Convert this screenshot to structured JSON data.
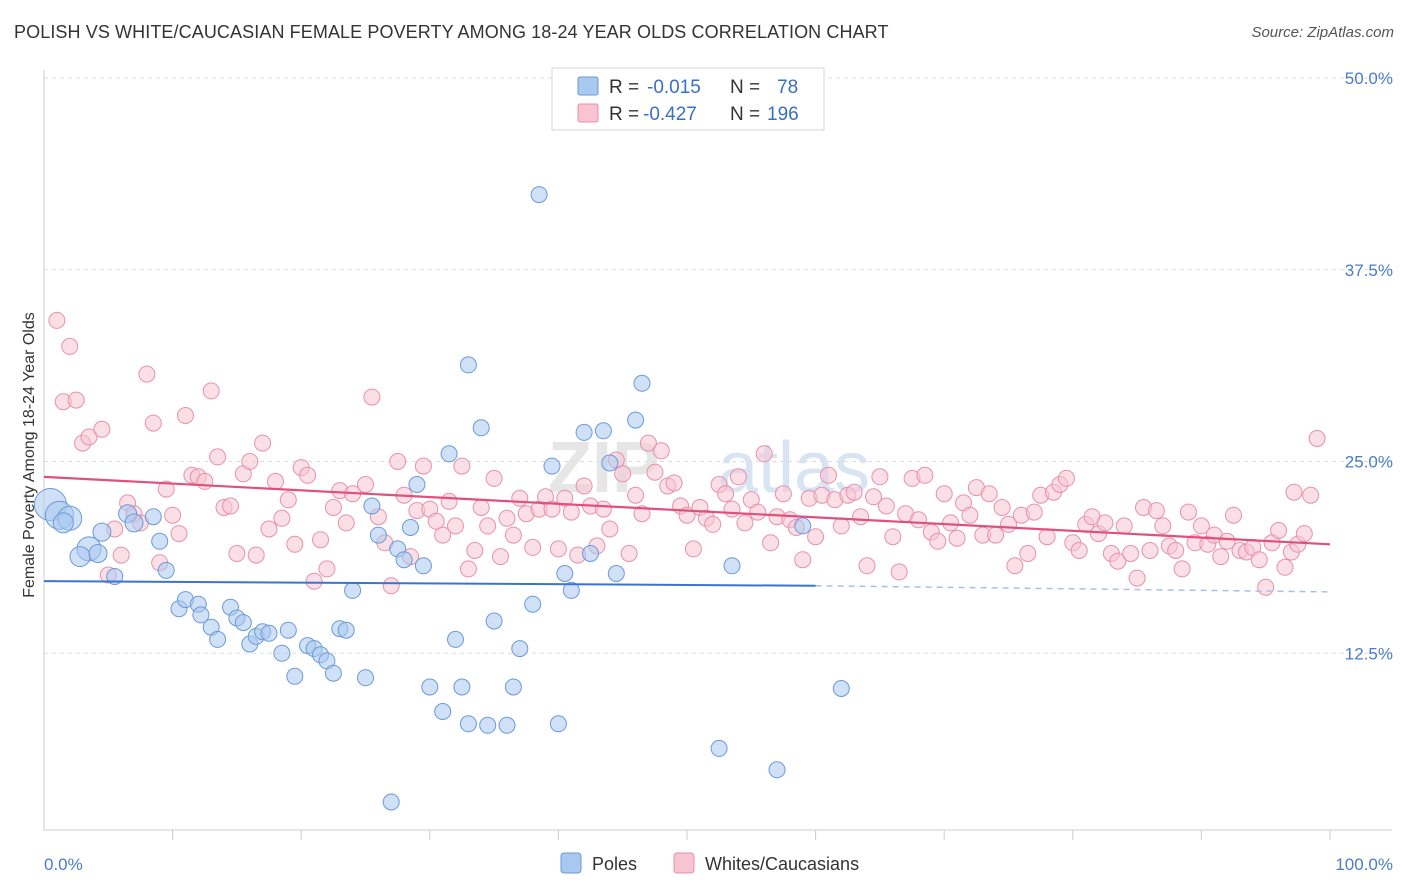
{
  "title": "POLISH VS WHITE/CAUCASIAN FEMALE POVERTY AMONG 18-24 YEAR OLDS CORRELATION CHART",
  "source": "Source: ZipAtlas.com",
  "watermark": {
    "zip": "ZIP",
    "atlas": "atlas"
  },
  "legend": {
    "r_label": "R =",
    "n_label": "N =",
    "rows": [
      {
        "name": "Poles",
        "r": "-0.015",
        "n": "78",
        "color": "#a9c8f0",
        "stroke": "#6a9ad8"
      },
      {
        "name": "Whites/Caucasians",
        "r": "-0.427",
        "n": "196",
        "color": "#f8c4d4",
        "stroke": "#e890ac"
      }
    ]
  },
  "chart_data": {
    "type": "scatter",
    "title": "POLISH VS WHITE/CAUCASIAN FEMALE POVERTY AMONG 18-24 YEAR OLDS CORRELATION CHART",
    "xlabel": "",
    "ylabel": "Female Poverty Among 18-24 Year Olds",
    "xlim": [
      0,
      100
    ],
    "ylim": [
      0,
      50
    ],
    "x_tick_labels": [
      "0.0%",
      "100.0%"
    ],
    "y_ticks": [
      12.5,
      25.0,
      37.5,
      50.0
    ],
    "y_tick_labels": [
      "12.5%",
      "25.0%",
      "37.5%",
      "50.0%"
    ],
    "series": [
      {
        "name": "Poles",
        "color": "#a9c8f0",
        "stroke": "#6a9ad8",
        "trend": {
          "x0": 0,
          "y0": 17.2,
          "x1": 60,
          "y1": 16.9,
          "dashed_to_x": 100,
          "dashed_to_y": 16.5,
          "color": "#3a74d0"
        },
        "points": [
          [
            0.5,
            22.2,
            16
          ],
          [
            1.2,
            21.5,
            14
          ],
          [
            2.0,
            21.3,
            12
          ],
          [
            1.5,
            21.0,
            10
          ],
          [
            3.5,
            19.3,
            12
          ],
          [
            2.8,
            18.8,
            10
          ],
          [
            4.2,
            19.0,
            9
          ],
          [
            4.5,
            20.4,
            9
          ],
          [
            5.5,
            17.5,
            8
          ],
          [
            6.5,
            21.6,
            9
          ],
          [
            7.0,
            21.0,
            9
          ],
          [
            9.0,
            19.8,
            8
          ],
          [
            8.5,
            21.4,
            8
          ],
          [
            9.5,
            17.9,
            8
          ],
          [
            10.5,
            15.4,
            8
          ],
          [
            11.0,
            16.0,
            8
          ],
          [
            12.0,
            15.7,
            8
          ],
          [
            12.2,
            15.0,
            8
          ],
          [
            13.0,
            14.2,
            8
          ],
          [
            13.5,
            13.4,
            8
          ],
          [
            14.5,
            15.5,
            8
          ],
          [
            15.0,
            14.8,
            8
          ],
          [
            15.5,
            14.5,
            8
          ],
          [
            16.0,
            13.1,
            8
          ],
          [
            16.5,
            13.6,
            8
          ],
          [
            17.0,
            13.9,
            8
          ],
          [
            17.5,
            13.8,
            8
          ],
          [
            18.5,
            12.5,
            8
          ],
          [
            19.0,
            14.0,
            8
          ],
          [
            19.5,
            11.0,
            8
          ],
          [
            20.5,
            13.0,
            8
          ],
          [
            21.0,
            12.8,
            8
          ],
          [
            21.5,
            12.4,
            8
          ],
          [
            22.0,
            12.0,
            8
          ],
          [
            22.5,
            11.2,
            8
          ],
          [
            23.0,
            14.1,
            8
          ],
          [
            23.5,
            14.0,
            8
          ],
          [
            24.0,
            16.6,
            8
          ],
          [
            25.0,
            10.9,
            8
          ],
          [
            25.5,
            22.1,
            8
          ],
          [
            26.0,
            20.2,
            8
          ],
          [
            27.0,
            2.8,
            8
          ],
          [
            27.5,
            19.3,
            8
          ],
          [
            28.0,
            18.6,
            8
          ],
          [
            28.5,
            20.7,
            8
          ],
          [
            29.0,
            23.5,
            8
          ],
          [
            29.5,
            18.2,
            8
          ],
          [
            30.0,
            10.3,
            8
          ],
          [
            31.0,
            8.7,
            8
          ],
          [
            31.5,
            25.5,
            8
          ],
          [
            32.0,
            13.4,
            8
          ],
          [
            32.5,
            10.3,
            8
          ],
          [
            33.0,
            31.3,
            8
          ],
          [
            34.0,
            27.2,
            8
          ],
          [
            34.5,
            7.8,
            8
          ],
          [
            35.0,
            14.6,
            8
          ],
          [
            36.0,
            7.8,
            8
          ],
          [
            36.5,
            10.3,
            8
          ],
          [
            37.0,
            12.8,
            8
          ],
          [
            38.0,
            15.7,
            8
          ],
          [
            38.5,
            42.4,
            8
          ],
          [
            39.5,
            24.7,
            8
          ],
          [
            40.0,
            7.9,
            8
          ],
          [
            40.5,
            17.7,
            8
          ],
          [
            41.0,
            16.6,
            8
          ],
          [
            42.0,
            26.9,
            8
          ],
          [
            42.5,
            19.0,
            8
          ],
          [
            43.5,
            27.0,
            8
          ],
          [
            44.0,
            24.9,
            8
          ],
          [
            44.5,
            17.7,
            8
          ],
          [
            46.0,
            27.7,
            8
          ],
          [
            46.5,
            30.1,
            8
          ],
          [
            52.5,
            6.3,
            8
          ],
          [
            53.5,
            18.2,
            8
          ],
          [
            57.0,
            4.9,
            8
          ],
          [
            59.0,
            20.8,
            8
          ],
          [
            62.0,
            10.2,
            8
          ],
          [
            33.0,
            7.9,
            8
          ]
        ]
      },
      {
        "name": "Whites/Caucasians",
        "color": "#f8c4d4",
        "stroke": "#e890ac",
        "trend": {
          "x0": 0,
          "y0": 24.0,
          "x1": 100,
          "y1": 19.6,
          "color": "#e0507c"
        },
        "points": [
          [
            1.0,
            34.2
          ],
          [
            1.5,
            28.9
          ],
          [
            2.0,
            32.5
          ],
          [
            2.5,
            29.0
          ],
          [
            3.0,
            26.2
          ],
          [
            3.5,
            26.6
          ],
          [
            4.5,
            27.1
          ],
          [
            5.0,
            17.6
          ],
          [
            5.5,
            20.6
          ],
          [
            6.0,
            18.9
          ],
          [
            6.5,
            22.3
          ],
          [
            7.0,
            21.6
          ],
          [
            7.5,
            21.0
          ],
          [
            8.0,
            30.7
          ],
          [
            8.5,
            27.5
          ],
          [
            9.0,
            18.4
          ],
          [
            9.5,
            23.2
          ],
          [
            10.0,
            21.5
          ],
          [
            10.5,
            20.3
          ],
          [
            11.0,
            28.0
          ],
          [
            11.5,
            24.1
          ],
          [
            12.0,
            24.0
          ],
          [
            12.5,
            23.7
          ],
          [
            13.0,
            29.6
          ],
          [
            13.5,
            25.3
          ],
          [
            14.0,
            22.0
          ],
          [
            14.5,
            22.1
          ],
          [
            15.0,
            19.0
          ],
          [
            15.5,
            24.2
          ],
          [
            16.0,
            25.0
          ],
          [
            16.5,
            18.9
          ],
          [
            17.0,
            26.2
          ],
          [
            17.5,
            20.6
          ],
          [
            18.0,
            23.7
          ],
          [
            18.5,
            21.3
          ],
          [
            19.0,
            22.5
          ],
          [
            19.5,
            19.6
          ],
          [
            20.0,
            24.6
          ],
          [
            20.5,
            24.1
          ],
          [
            21.0,
            17.2
          ],
          [
            21.5,
            19.9
          ],
          [
            22.0,
            18.0
          ],
          [
            22.5,
            22.0
          ],
          [
            23.0,
            23.1
          ],
          [
            23.5,
            21.0
          ],
          [
            24.0,
            22.9
          ],
          [
            25.0,
            23.5
          ],
          [
            25.5,
            29.2
          ],
          [
            26.0,
            21.4
          ],
          [
            26.5,
            19.7
          ],
          [
            27.0,
            16.9
          ],
          [
            27.5,
            25.0
          ],
          [
            28.0,
            22.8
          ],
          [
            28.5,
            18.8
          ],
          [
            29.0,
            21.8
          ],
          [
            29.5,
            24.7
          ],
          [
            30.0,
            21.9
          ],
          [
            30.5,
            21.1
          ],
          [
            31.0,
            20.2
          ],
          [
            31.5,
            22.4
          ],
          [
            32.0,
            20.8
          ],
          [
            32.5,
            24.7
          ],
          [
            33.0,
            18.0
          ],
          [
            33.5,
            19.2
          ],
          [
            34.0,
            22.0
          ],
          [
            34.5,
            20.8
          ],
          [
            35.0,
            23.9
          ],
          [
            35.5,
            18.8
          ],
          [
            36.0,
            21.3
          ],
          [
            36.5,
            20.2
          ],
          [
            37.0,
            22.6
          ],
          [
            37.5,
            21.6
          ],
          [
            38.0,
            19.4
          ],
          [
            38.5,
            21.9
          ],
          [
            39.0,
            22.7
          ],
          [
            39.5,
            21.9
          ],
          [
            40.0,
            19.3
          ],
          [
            40.5,
            22.6
          ],
          [
            41.0,
            21.7
          ],
          [
            41.5,
            18.9
          ],
          [
            42.0,
            23.4
          ],
          [
            42.5,
            22.1
          ],
          [
            43.0,
            19.5
          ],
          [
            43.5,
            21.9
          ],
          [
            44.0,
            20.6
          ],
          [
            44.5,
            25.1
          ],
          [
            45.0,
            24.2
          ],
          [
            45.5,
            19.0
          ],
          [
            46.0,
            22.8
          ],
          [
            46.5,
            21.6
          ],
          [
            47.0,
            26.2
          ],
          [
            47.5,
            24.3
          ],
          [
            48.0,
            25.7
          ],
          [
            48.5,
            23.4
          ],
          [
            49.0,
            23.6
          ],
          [
            49.5,
            22.1
          ],
          [
            50.0,
            21.5
          ],
          [
            50.5,
            19.3
          ],
          [
            51.0,
            22.0
          ],
          [
            51.5,
            21.3
          ],
          [
            52.0,
            20.9
          ],
          [
            52.5,
            23.5
          ],
          [
            53.0,
            22.9
          ],
          [
            53.5,
            21.9
          ],
          [
            54.0,
            24.0
          ],
          [
            54.5,
            21.0
          ],
          [
            55.0,
            22.5
          ],
          [
            55.5,
            21.7
          ],
          [
            56.0,
            25.5
          ],
          [
            56.5,
            19.7
          ],
          [
            57.0,
            21.4
          ],
          [
            57.5,
            22.9
          ],
          [
            58.0,
            21.2
          ],
          [
            58.5,
            20.7
          ],
          [
            59.0,
            18.6
          ],
          [
            59.5,
            22.6
          ],
          [
            60.0,
            20.1
          ],
          [
            60.5,
            22.8
          ],
          [
            61.0,
            24.1
          ],
          [
            61.5,
            22.5
          ],
          [
            62.0,
            20.8
          ],
          [
            62.5,
            22.8
          ],
          [
            63.0,
            23.0
          ],
          [
            63.5,
            21.4
          ],
          [
            64.0,
            18.2
          ],
          [
            64.5,
            22.7
          ],
          [
            65.0,
            24.0
          ],
          [
            65.5,
            22.1
          ],
          [
            66.0,
            20.1
          ],
          [
            66.5,
            17.8
          ],
          [
            67.0,
            21.6
          ],
          [
            67.5,
            23.9
          ],
          [
            68.0,
            21.2
          ],
          [
            68.5,
            24.1
          ],
          [
            69.0,
            20.4
          ],
          [
            69.5,
            19.8
          ],
          [
            70.0,
            22.9
          ],
          [
            70.5,
            21.0
          ],
          [
            71.0,
            20.0
          ],
          [
            71.5,
            22.3
          ],
          [
            72.0,
            21.5
          ],
          [
            72.5,
            23.3
          ],
          [
            73.0,
            20.2
          ],
          [
            73.5,
            22.9
          ],
          [
            74.0,
            20.2
          ],
          [
            74.5,
            22.0
          ],
          [
            75.0,
            20.9
          ],
          [
            75.5,
            18.2
          ],
          [
            76.0,
            21.5
          ],
          [
            76.5,
            19.0
          ],
          [
            77.0,
            21.7
          ],
          [
            77.5,
            22.8
          ],
          [
            78.0,
            20.1
          ],
          [
            78.5,
            23.0
          ],
          [
            79.0,
            23.5
          ],
          [
            79.5,
            23.9
          ],
          [
            80.0,
            19.7
          ],
          [
            80.5,
            19.2
          ],
          [
            81.0,
            20.9
          ],
          [
            81.5,
            21.4
          ],
          [
            82.0,
            20.3
          ],
          [
            82.5,
            21.0
          ],
          [
            83.0,
            19.0
          ],
          [
            83.5,
            18.5
          ],
          [
            84.0,
            20.8
          ],
          [
            84.5,
            19.0
          ],
          [
            85.0,
            17.4
          ],
          [
            85.5,
            22.0
          ],
          [
            86.0,
            19.2
          ],
          [
            86.5,
            21.8
          ],
          [
            87.0,
            20.8
          ],
          [
            87.5,
            19.5
          ],
          [
            88.0,
            19.2
          ],
          [
            88.5,
            18.0
          ],
          [
            89.0,
            21.7
          ],
          [
            89.5,
            19.7
          ],
          [
            90.0,
            20.8
          ],
          [
            90.5,
            19.6
          ],
          [
            91.0,
            20.2
          ],
          [
            91.5,
            18.8
          ],
          [
            92.0,
            19.8
          ],
          [
            92.5,
            21.5
          ],
          [
            93.0,
            19.2
          ],
          [
            93.5,
            19.1
          ],
          [
            94.0,
            19.4
          ],
          [
            94.5,
            18.6
          ],
          [
            95.0,
            16.8
          ],
          [
            95.5,
            19.7
          ],
          [
            96.0,
            20.5
          ],
          [
            96.5,
            18.1
          ],
          [
            97.0,
            19.1
          ],
          [
            97.5,
            19.6
          ],
          [
            98.0,
            20.3
          ],
          [
            98.5,
            22.8
          ],
          [
            99.0,
            26.5
          ],
          [
            97.2,
            23.0
          ]
        ]
      }
    ],
    "legend_position": "top-center"
  }
}
